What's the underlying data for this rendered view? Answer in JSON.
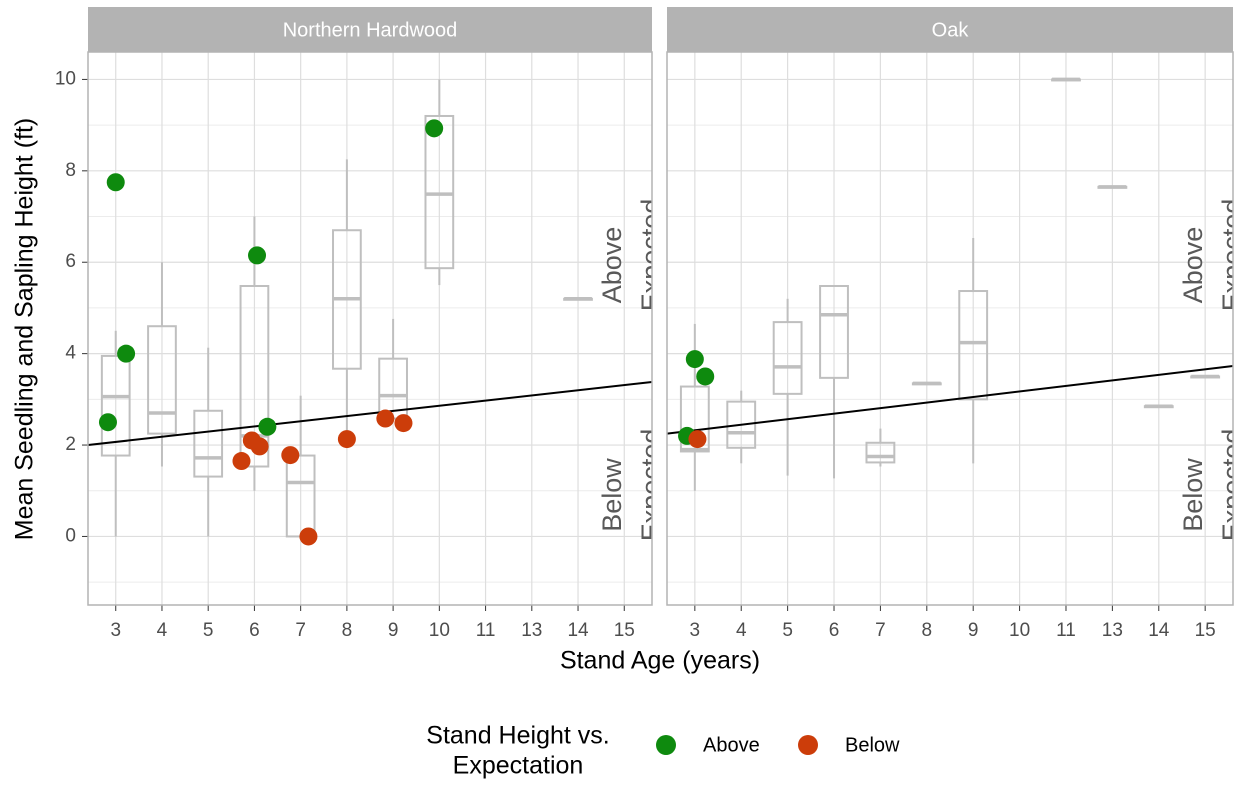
{
  "x_label": "Stand Age (years)",
  "y_label": "Mean Seedling and Sapling Height (ft)",
  "legend": {
    "title": [
      "Stand Height vs.",
      "Expectation"
    ],
    "entries": [
      {
        "name": "Above",
        "color": "#0e8a0e"
      },
      {
        "name": "Below",
        "color": "#cc3d0a"
      }
    ]
  },
  "chart_data": [
    {
      "type": "box",
      "title": "Northern Hardwood",
      "categories": [
        "3",
        "4",
        "5",
        "6",
        "7",
        "8",
        "9",
        "10",
        "11",
        "13",
        "14",
        "15"
      ],
      "ylim": [
        -1.5,
        10.6
      ],
      "yticks": [
        0,
        2,
        4,
        6,
        8,
        10
      ],
      "minor_yticks": [
        -1,
        1,
        3,
        5,
        7,
        9
      ],
      "grid": true,
      "boxes": [
        {
          "low": 0,
          "q1": 1.77,
          "median": 3.06,
          "q3": 3.95,
          "high": 4.5
        },
        {
          "low": 1.53,
          "q1": 2.25,
          "median": 2.7,
          "q3": 4.6,
          "high": 6.0
        },
        {
          "low": 0,
          "q1": 1.31,
          "median": 1.72,
          "q3": 2.75,
          "high": 4.13
        },
        {
          "low": 1.0,
          "q1": 1.53,
          "median": 2.2,
          "q3": 5.48,
          "high": 7.0
        },
        {
          "low": 0,
          "q1": 0,
          "median": 1.18,
          "q3": 1.77,
          "high": 3.08
        },
        {
          "low": 2.1,
          "q1": 3.67,
          "median": 5.2,
          "q3": 6.7,
          "high": 8.25
        },
        {
          "low": 2.58,
          "q1": 2.58,
          "median": 3.08,
          "q3": 3.89,
          "high": 4.76
        },
        {
          "low": 5.5,
          "q1": 5.87,
          "median": 7.49,
          "q3": 9.2,
          "high": 10.0
        },
        null,
        null,
        {
          "low": 5.2,
          "q1": 5.2,
          "median": 5.2,
          "q3": 5.2,
          "high": 5.2
        },
        null
      ],
      "series": [
        {
          "categories": [
            "3",
            "3",
            "3",
            "6",
            "6",
            "10"
          ],
          "values": [
            7.75,
            4.0,
            2.5,
            6.15,
            2.4,
            8.93
          ]
        },
        {
          "categories": [
            "6",
            "6",
            "6",
            "7",
            "7",
            "8",
            "9",
            "9"
          ],
          "values": [
            1.97,
            1.65,
            2.1,
            0,
            1.78,
            2.13,
            2.48,
            2.58
          ]
        }
      ],
      "trend_line": {
        "from": 2.0,
        "to": 3.38
      },
      "annotations": [
        "Above",
        "Expected",
        "Below",
        "Expected"
      ]
    },
    {
      "type": "box",
      "title": "Oak",
      "categories": [
        "3",
        "4",
        "5",
        "6",
        "7",
        "8",
        "9",
        "10",
        "11",
        "13",
        "14",
        "15"
      ],
      "ylim": [
        -1.5,
        10.6
      ],
      "yticks": [
        0,
        2,
        4,
        6,
        8,
        10
      ],
      "minor_yticks": [
        -1,
        1,
        3,
        5,
        7,
        9
      ],
      "grid": true,
      "boxes": [
        {
          "low": 1.0,
          "q1": 1.86,
          "median": 1.9,
          "q3": 3.28,
          "high": 4.65
        },
        {
          "low": 1.6,
          "q1": 1.94,
          "median": 2.27,
          "q3": 2.95,
          "high": 3.19
        },
        {
          "low": 1.33,
          "q1": 3.12,
          "median": 3.71,
          "q3": 4.69,
          "high": 5.2
        },
        {
          "low": 1.27,
          "q1": 3.47,
          "median": 4.85,
          "q3": 5.48,
          "high": 5.48
        },
        {
          "low": 1.53,
          "q1": 1.62,
          "median": 1.75,
          "q3": 2.05,
          "high": 2.36
        },
        {
          "low": 3.35,
          "q1": 3.35,
          "median": 3.35,
          "q3": 3.35,
          "high": 3.35
        },
        {
          "low": 1.6,
          "q1": 3.0,
          "median": 4.24,
          "q3": 5.37,
          "high": 6.53
        },
        null,
        {
          "low": 10.0,
          "q1": 10.0,
          "median": 10.0,
          "q3": 10.0,
          "high": 10.0
        },
        {
          "low": 7.65,
          "q1": 7.65,
          "median": 7.65,
          "q3": 7.65,
          "high": 7.65
        },
        {
          "low": 2.85,
          "q1": 2.85,
          "median": 2.85,
          "q3": 2.85,
          "high": 2.85
        },
        {
          "low": 3.5,
          "q1": 3.5,
          "median": 3.5,
          "q3": 3.5,
          "high": 3.5
        }
      ],
      "series": [
        {
          "categories": [
            "3",
            "3",
            "3"
          ],
          "values": [
            3.88,
            3.5,
            2.2
          ]
        },
        {
          "categories": [
            "3"
          ],
          "values": [
            2.13
          ]
        }
      ],
      "trend_line": {
        "from": 2.25,
        "to": 3.73
      },
      "annotations": [
        "Above",
        "Expected",
        "Below",
        "Expected"
      ]
    }
  ]
}
